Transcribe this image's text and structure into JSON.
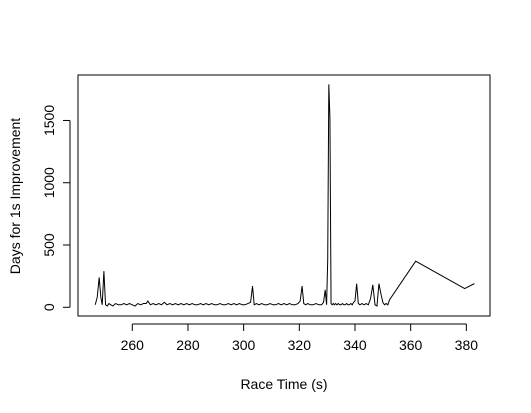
{
  "chart_data": {
    "type": "line",
    "title": "",
    "xlabel": "Race Time (s)",
    "ylabel": "Days for 1s Improvement",
    "xlim": [
      240.5,
      388.5
    ],
    "ylim": [
      -70,
      1865
    ],
    "xticks": [
      260,
      280,
      300,
      320,
      340,
      360,
      380
    ],
    "yticks": [
      0,
      500,
      1000,
      1500
    ],
    "grid": false,
    "legend": "none",
    "line_color": "#000000",
    "series": [
      {
        "x": [
          246.7,
          247.4,
          248.1,
          248.7,
          249.2,
          249.8,
          250.4,
          251.0,
          251.6,
          252.3,
          253.0,
          254.0,
          255.0,
          256.0,
          257.0,
          258.0,
          259.0,
          260.0,
          261.0,
          262.0,
          263.0,
          264.0,
          265.0,
          265.6,
          266.5,
          267.5,
          268.5,
          269.5,
          270.5,
          271.5,
          272.5,
          273.5,
          274.5,
          275.5,
          276.5,
          277.5,
          278.5,
          279.5,
          280.5,
          281.5,
          282.5,
          283.5,
          284.5,
          285.5,
          286.5,
          287.5,
          288.5,
          289.5,
          290.5,
          291.5,
          292.5,
          293.5,
          294.5,
          295.5,
          296.5,
          297.5,
          298.5,
          299.5,
          300.5,
          301.5,
          302.5,
          303.2,
          303.8,
          304.6,
          305.5,
          306.5,
          307.5,
          308.5,
          309.5,
          310.5,
          311.5,
          312.5,
          313.5,
          314.5,
          315.5,
          316.5,
          317.5,
          318.5,
          319.5,
          320.3,
          321.0,
          321.6,
          322.3,
          323.0,
          324.0,
          325.0,
          326.0,
          327.0,
          328.0,
          328.7,
          329.3,
          329.8,
          330.2,
          330.6,
          331.0,
          331.4,
          331.8,
          332.2,
          332.6,
          333.0,
          333.5,
          334.0,
          334.5,
          335.0,
          335.5,
          336.0,
          336.5,
          337.0,
          337.5,
          338.0,
          338.5,
          339.0,
          339.5,
          340.0,
          340.6,
          341.2,
          341.8,
          342.5,
          343.3,
          344.0,
          344.8,
          345.6,
          346.4,
          347.2,
          347.9,
          348.6,
          349.3,
          350.0,
          350.6,
          351.2,
          351.8,
          352.4,
          361.8,
          379.4,
          382.9
        ],
        "y": [
          20,
          80,
          240,
          80,
          20,
          290,
          20,
          10,
          30,
          20,
          10,
          30,
          20,
          20,
          30,
          20,
          30,
          20,
          10,
          30,
          20,
          30,
          30,
          50,
          20,
          30,
          20,
          30,
          20,
          40,
          20,
          30,
          20,
          30,
          20,
          30,
          20,
          30,
          20,
          30,
          20,
          20,
          30,
          20,
          30,
          20,
          30,
          20,
          20,
          30,
          20,
          20,
          30,
          20,
          30,
          20,
          30,
          20,
          20,
          30,
          40,
          170,
          20,
          30,
          20,
          30,
          20,
          20,
          30,
          20,
          20,
          30,
          20,
          30,
          20,
          30,
          20,
          20,
          30,
          50,
          170,
          30,
          20,
          30,
          20,
          20,
          30,
          20,
          20,
          40,
          140,
          20,
          380,
          1790,
          1520,
          30,
          20,
          30,
          20,
          30,
          20,
          30,
          20,
          20,
          30,
          20,
          20,
          30,
          20,
          20,
          30,
          20,
          40,
          50,
          190,
          30,
          20,
          30,
          20,
          30,
          20,
          70,
          180,
          20,
          10,
          190,
          110,
          40,
          20,
          30,
          20,
          60,
          370,
          150,
          190
        ]
      }
    ]
  }
}
